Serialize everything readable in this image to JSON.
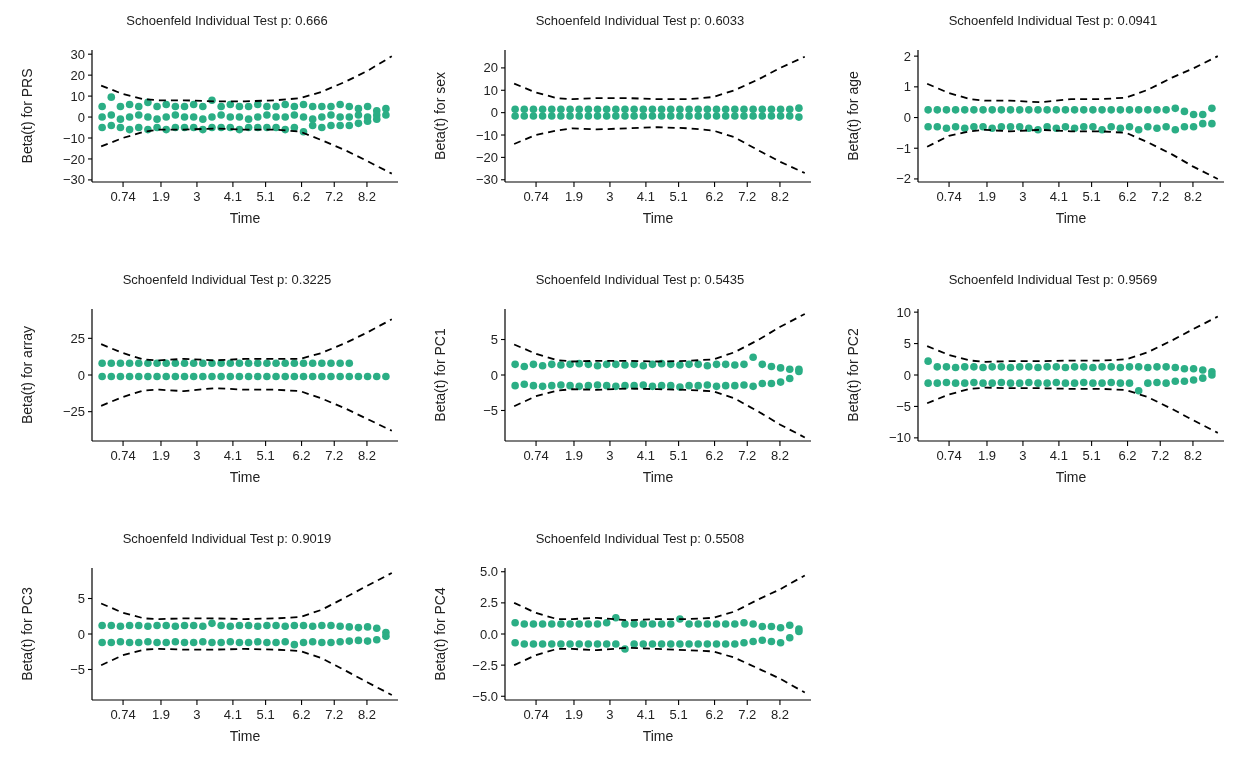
{
  "chart_data": [
    {
      "type": "scatter",
      "title": "Schoenfeld Individual Test p: 0.666",
      "xlabel": "Time",
      "ylabel": "Beta(t) for PRS",
      "grid": false,
      "xlim": [
        -0.21,
        9.15
      ],
      "xticks": [
        0.74,
        1.9,
        3,
        4.1,
        5.1,
        6.2,
        7.2,
        8.2
      ],
      "ylim": [
        -31,
        32
      ],
      "yticks": [
        {
          "value": -30,
          "label": "−30"
        },
        {
          "value": -20,
          "label": "−20"
        },
        {
          "value": -10,
          "label": "−10"
        },
        0,
        10,
        20,
        30
      ],
      "series": [
        {
          "color": "#2bae85",
          "x": [
            0.1,
            0.38,
            0.66,
            0.94,
            1.22,
            1.5,
            1.78,
            2.06,
            2.34,
            2.62,
            2.9,
            3.18,
            3.46,
            3.74,
            4.02,
            4.3,
            4.58,
            4.86,
            5.14,
            5.42,
            5.7,
            5.98,
            6.26,
            6.54,
            6.82,
            7.1,
            7.38,
            7.66,
            7.94,
            8.22,
            8.5,
            8.78,
            0.1,
            0.38,
            0.66,
            0.94,
            1.22,
            1.5,
            1.78,
            2.06,
            2.34,
            2.62,
            2.9,
            3.18,
            3.46,
            3.74,
            4.02,
            4.3,
            4.58,
            4.86,
            5.14,
            5.42,
            5.7,
            5.98,
            6.26,
            6.54,
            6.82,
            7.1,
            7.38,
            7.66,
            7.94,
            8.22,
            8.5,
            8.78,
            0.1,
            0.38,
            0.66,
            0.94,
            1.22,
            1.5,
            1.78,
            2.06,
            2.34,
            2.62,
            2.9,
            3.18,
            3.46,
            3.74,
            4.02,
            4.3,
            4.58,
            4.86,
            5.14,
            5.42,
            5.7,
            5.98,
            6.26,
            6.54,
            6.82,
            7.1,
            7.38,
            7.66,
            7.94,
            8.22,
            8.5
          ],
          "marker": "circle",
          "values": [
            5,
            9.5,
            5,
            6,
            5,
            7,
            5,
            6,
            5,
            5,
            6,
            5,
            8,
            5,
            6,
            5,
            5,
            6,
            5,
            5,
            6,
            5,
            6,
            5,
            5,
            5,
            6,
            5,
            4,
            5,
            3,
            4,
            0,
            1,
            -1,
            0,
            1,
            0,
            -1,
            0,
            1,
            0,
            0,
            -1,
            0,
            1,
            0,
            0,
            -1,
            0,
            1,
            0,
            0,
            1,
            0,
            -1,
            0,
            1,
            0,
            0,
            1,
            0,
            1,
            1,
            -5,
            -4,
            -5,
            -6,
            -5,
            -6,
            -5,
            -6,
            -5,
            -5,
            -5,
            -6,
            -5,
            -5,
            -5,
            -6,
            -5,
            -5,
            -5,
            -5,
            -6,
            -5,
            -7,
            -4,
            -5,
            -4,
            -4,
            -4,
            -3,
            -2,
            -1
          ]
        },
        {
          "type": "line",
          "color": "#000000",
          "line_style": "dashed",
          "x": [
            0.07,
            0.73,
            1.38,
            1.85,
            2.6,
            3.53,
            4.47,
            5.41,
            6.16,
            6.81,
            7.56,
            8.21,
            8.96
          ],
          "values": [
            15,
            11,
            8.5,
            8,
            8,
            7.5,
            7.5,
            8,
            9,
            12,
            17,
            22,
            29
          ]
        },
        {
          "type": "line",
          "color": "#000000",
          "line_style": "dashed",
          "x": [
            0.07,
            0.73,
            1.38,
            1.85,
            2.6,
            3.53,
            4.47,
            5.41,
            6.16,
            6.81,
            7.56,
            8.21,
            8.96
          ],
          "values": [
            -14,
            -10,
            -7,
            -6,
            -6,
            -5.5,
            -6,
            -6,
            -7,
            -11,
            -16,
            -21,
            -27
          ]
        }
      ]
    },
    {
      "type": "scatter",
      "title": "Schoenfeld Individual Test p: 0.6033",
      "xlabel": "Time",
      "ylabel": "Beta(t) for sex",
      "grid": false,
      "xlim": [
        -0.21,
        9.15
      ],
      "xticks": [
        0.74,
        1.9,
        3,
        4.1,
        5.1,
        6.2,
        7.2,
        8.2
      ],
      "ylim": [
        -31,
        28
      ],
      "yticks": [
        {
          "value": -30,
          "label": "−30"
        },
        {
          "value": -20,
          "label": "−20"
        },
        {
          "value": -10,
          "label": "−10"
        },
        0,
        10,
        20
      ],
      "series": [
        {
          "color": "#2bae85",
          "x": [
            0.1,
            0.38,
            0.66,
            0.94,
            1.22,
            1.5,
            1.78,
            2.06,
            2.34,
            2.62,
            2.9,
            3.18,
            3.46,
            3.74,
            4.02,
            4.3,
            4.58,
            4.86,
            5.14,
            5.42,
            5.7,
            5.98,
            6.26,
            6.54,
            6.82,
            7.1,
            7.38,
            7.66,
            7.94,
            8.22,
            8.5,
            8.78,
            0.1,
            0.38,
            0.66,
            0.94,
            1.22,
            1.5,
            1.78,
            2.06,
            2.34,
            2.62,
            2.9,
            3.18,
            3.46,
            3.74,
            4.02,
            4.3,
            4.58,
            4.86,
            5.14,
            5.42,
            5.7,
            5.98,
            6.26,
            6.54,
            6.82,
            7.1,
            7.38,
            7.66,
            7.94,
            8.22,
            8.5,
            8.78
          ],
          "marker": "circle",
          "values": [
            1.5,
            1.5,
            1.5,
            1.5,
            1.5,
            1.5,
            1.5,
            1.5,
            1.5,
            1.5,
            1.5,
            1.5,
            1.5,
            1.5,
            1.5,
            1.5,
            1.5,
            1.5,
            1.5,
            1.5,
            1.5,
            1.5,
            1.5,
            1.5,
            1.5,
            1.5,
            1.5,
            1.5,
            1.5,
            1.5,
            1.5,
            2,
            -1.5,
            -1.5,
            -1.5,
            -1.5,
            -1.5,
            -1.5,
            -1.5,
            -1.5,
            -1.5,
            -1.5,
            -1.5,
            -1.5,
            -1.5,
            -1.5,
            -1.5,
            -1.5,
            -1.5,
            -1.5,
            -1.5,
            -1.5,
            -1.5,
            -1.5,
            -1.5,
            -1.5,
            -1.5,
            -1.5,
            -1.5,
            -1.5,
            -1.5,
            -1.5,
            -1.5,
            -2
          ]
        },
        {
          "type": "line",
          "color": "#000000",
          "line_style": "dashed",
          "x": [
            0.07,
            0.73,
            1.38,
            1.85,
            2.6,
            3.53,
            4.47,
            5.41,
            6.16,
            6.81,
            7.56,
            8.21,
            8.96
          ],
          "values": [
            13,
            9,
            6.5,
            6,
            6.5,
            6.5,
            6,
            6,
            7,
            10,
            15,
            20,
            25
          ]
        },
        {
          "type": "line",
          "color": "#000000",
          "line_style": "dashed",
          "x": [
            0.07,
            0.73,
            1.38,
            1.85,
            2.6,
            3.53,
            4.47,
            5.41,
            6.16,
            6.81,
            7.56,
            8.21,
            8.96
          ],
          "values": [
            -14,
            -10,
            -8,
            -7,
            -7.5,
            -7,
            -6.5,
            -7,
            -8,
            -11,
            -17,
            -22,
            -27
          ]
        }
      ]
    },
    {
      "type": "scatter",
      "title": "Schoenfeld Individual Test p: 0.0941",
      "xlabel": "Time",
      "ylabel": "Beta(t) for age",
      "grid": false,
      "xlim": [
        -0.21,
        9.15
      ],
      "xticks": [
        0.74,
        1.9,
        3,
        4.1,
        5.1,
        6.2,
        7.2,
        8.2
      ],
      "ylim": [
        -2.1,
        2.2
      ],
      "yticks": [
        {
          "value": -2,
          "label": "−2"
        },
        {
          "value": -1,
          "label": "−1"
        },
        0,
        1,
        2
      ],
      "series": [
        {
          "color": "#2bae85",
          "x": [
            0.1,
            0.38,
            0.66,
            0.94,
            1.22,
            1.5,
            1.78,
            2.06,
            2.34,
            2.62,
            2.9,
            3.18,
            3.46,
            3.74,
            4.02,
            4.3,
            4.58,
            4.86,
            5.14,
            5.42,
            5.7,
            5.98,
            6.26,
            6.54,
            6.82,
            7.1,
            7.38,
            7.66,
            7.94,
            8.22,
            8.5,
            8.78,
            0.1,
            0.38,
            0.66,
            0.94,
            1.22,
            1.5,
            1.78,
            2.06,
            2.34,
            2.62,
            2.9,
            3.18,
            3.46,
            3.74,
            4.02,
            4.3,
            4.58,
            4.86,
            5.14,
            5.42,
            5.7,
            5.98,
            6.26,
            6.54,
            6.82,
            7.1,
            7.38,
            7.66,
            7.94,
            8.22,
            8.5,
            8.78
          ],
          "marker": "circle",
          "values": [
            0.25,
            0.25,
            0.25,
            0.25,
            0.25,
            0.25,
            0.25,
            0.25,
            0.25,
            0.25,
            0.25,
            0.25,
            0.25,
            0.25,
            0.25,
            0.25,
            0.25,
            0.25,
            0.25,
            0.25,
            0.25,
            0.25,
            0.25,
            0.25,
            0.25,
            0.25,
            0.25,
            0.3,
            0.2,
            0.1,
            0.1,
            0.3,
            -0.3,
            -0.3,
            -0.35,
            -0.3,
            -0.35,
            -0.3,
            -0.3,
            -0.35,
            -0.3,
            -0.3,
            -0.3,
            -0.35,
            -0.4,
            -0.3,
            -0.35,
            -0.3,
            -0.35,
            -0.3,
            -0.3,
            -0.4,
            -0.3,
            -0.35,
            -0.3,
            -0.4,
            -0.3,
            -0.35,
            -0.3,
            -0.4,
            -0.3,
            -0.3,
            -0.2,
            -0.2
          ]
        },
        {
          "type": "line",
          "color": "#000000",
          "line_style": "dashed",
          "x": [
            0.07,
            0.73,
            1.38,
            1.85,
            2.6,
            3.53,
            4.47,
            5.41,
            6.16,
            6.81,
            7.56,
            8.21,
            8.96
          ],
          "values": [
            1.1,
            0.8,
            0.6,
            0.55,
            0.55,
            0.5,
            0.6,
            0.6,
            0.65,
            0.9,
            1.3,
            1.6,
            2.0
          ]
        },
        {
          "type": "line",
          "color": "#000000",
          "line_style": "dashed",
          "x": [
            0.07,
            0.73,
            1.38,
            1.85,
            2.6,
            3.53,
            4.47,
            5.41,
            6.16,
            6.81,
            7.56,
            8.21,
            8.96
          ],
          "values": [
            -0.95,
            -0.6,
            -0.45,
            -0.4,
            -0.45,
            -0.4,
            -0.45,
            -0.45,
            -0.5,
            -0.8,
            -1.2,
            -1.6,
            -2.0
          ]
        }
      ]
    },
    {
      "type": "scatter",
      "title": "Schoenfeld Individual Test p: 0.3225",
      "xlabel": "Time",
      "ylabel": "Beta(t) for array",
      "grid": false,
      "xlim": [
        -0.21,
        9.15
      ],
      "xticks": [
        0.74,
        1.9,
        3,
        4.1,
        5.1,
        6.2,
        7.2,
        8.2
      ],
      "ylim": [
        -45,
        45
      ],
      "yticks": [
        {
          "value": -25,
          "label": "−25"
        },
        0,
        25
      ],
      "series": [
        {
          "color": "#2bae85",
          "x": [
            0.1,
            0.38,
            0.66,
            0.94,
            1.22,
            1.5,
            1.78,
            2.06,
            2.34,
            2.62,
            2.9,
            3.18,
            3.46,
            3.74,
            4.02,
            4.3,
            4.58,
            4.86,
            5.14,
            5.42,
            5.7,
            5.98,
            6.26,
            6.54,
            6.82,
            7.1,
            7.38,
            7.66,
            0.1,
            0.38,
            0.66,
            0.94,
            1.22,
            1.5,
            1.78,
            2.06,
            2.34,
            2.62,
            2.9,
            3.18,
            3.46,
            3.74,
            4.02,
            4.3,
            4.58,
            4.86,
            5.14,
            5.42,
            5.7,
            5.98,
            6.26,
            6.54,
            6.82,
            7.1,
            7.38,
            7.66,
            7.94,
            8.22,
            8.5,
            8.78
          ],
          "marker": "circle",
          "values": [
            8,
            8,
            8,
            8,
            8,
            8,
            8,
            8,
            8,
            8,
            8,
            8,
            8,
            8,
            8,
            8,
            8,
            8,
            8,
            8,
            8,
            8,
            8,
            8,
            8,
            8,
            8,
            8,
            -1,
            -1,
            -1,
            -1,
            -1,
            -1,
            -1,
            -1,
            -1,
            -1,
            -1,
            -1,
            -1,
            -1,
            -1,
            -1,
            -1,
            -1,
            -1,
            -1,
            -1,
            -1,
            -1,
            -1,
            -1,
            -1,
            -1,
            -1,
            -1,
            -1,
            -1,
            -1
          ]
        },
        {
          "type": "line",
          "color": "#000000",
          "line_style": "dashed",
          "x": [
            0.07,
            0.73,
            1.38,
            1.85,
            2.6,
            3.53,
            4.47,
            5.41,
            6.16,
            6.81,
            7.56,
            8.21,
            8.96
          ],
          "values": [
            21,
            15,
            10.5,
            10,
            11,
            10,
            11,
            11,
            11,
            15,
            22,
            29,
            38
          ]
        },
        {
          "type": "line",
          "color": "#000000",
          "line_style": "dashed",
          "x": [
            0.07,
            0.73,
            1.38,
            1.85,
            2.6,
            3.53,
            4.47,
            5.41,
            6.16,
            6.81,
            7.56,
            8.21,
            8.96
          ],
          "values": [
            -21,
            -15,
            -10.5,
            -10,
            -11,
            -9,
            -10,
            -10,
            -11,
            -16,
            -23,
            -30,
            -38
          ]
        }
      ]
    },
    {
      "type": "scatter",
      "title": "Schoenfeld Individual Test p: 0.5435",
      "xlabel": "Time",
      "ylabel": "Beta(t) for PC1",
      "grid": false,
      "xlim": [
        -0.21,
        9.15
      ],
      "xticks": [
        0.74,
        1.9,
        3,
        4.1,
        5.1,
        6.2,
        7.2,
        8.2
      ],
      "ylim": [
        -9.3,
        9.3
      ],
      "yticks": [
        {
          "value": -5,
          "label": "−5"
        },
        0,
        5
      ],
      "series": [
        {
          "color": "#2bae85",
          "x": [
            0.1,
            0.38,
            0.66,
            0.94,
            1.22,
            1.5,
            1.78,
            2.06,
            2.34,
            2.62,
            2.9,
            3.18,
            3.46,
            3.74,
            4.02,
            4.3,
            4.58,
            4.86,
            5.14,
            5.42,
            5.7,
            5.98,
            6.26,
            6.54,
            6.82,
            7.1,
            7.38,
            7.66,
            7.94,
            8.22,
            8.5,
            8.78,
            0.1,
            0.38,
            0.66,
            0.94,
            1.22,
            1.5,
            1.78,
            2.06,
            2.34,
            2.62,
            2.9,
            3.18,
            3.46,
            3.74,
            4.02,
            4.3,
            4.58,
            4.86,
            5.14,
            5.42,
            5.7,
            5.98,
            6.26,
            6.54,
            6.82,
            7.1,
            7.38,
            7.66,
            7.94,
            8.22,
            8.5,
            8.78
          ],
          "marker": "circle",
          "values": [
            1.5,
            1.2,
            1.5,
            1.3,
            1.5,
            1.4,
            1.5,
            1.6,
            1.5,
            1.3,
            1.5,
            1.5,
            1.4,
            1.5,
            1.3,
            1.5,
            1.6,
            1.5,
            1.4,
            1.5,
            1.5,
            1.3,
            1.5,
            1.5,
            1.4,
            1.5,
            2.5,
            1.5,
            1.2,
            1,
            0.8,
            0.8,
            -1.5,
            -1.3,
            -1.5,
            -1.6,
            -1.5,
            -1.4,
            -1.5,
            -1.6,
            -1.5,
            -1.4,
            -1.5,
            -1.6,
            -1.5,
            -1.5,
            -1.4,
            -1.6,
            -1.5,
            -1.5,
            -1.7,
            -1.5,
            -1.5,
            -1.4,
            -1.6,
            -1.5,
            -1.5,
            -1.4,
            -1.6,
            -1.2,
            -1.2,
            -1,
            -0.5,
            0.5
          ]
        },
        {
          "type": "line",
          "color": "#000000",
          "line_style": "dashed",
          "x": [
            0.07,
            0.73,
            1.38,
            1.85,
            2.6,
            3.53,
            4.47,
            5.41,
            6.16,
            6.81,
            7.56,
            8.21,
            8.96
          ],
          "values": [
            4.3,
            3,
            2.1,
            1.9,
            2,
            2,
            1.9,
            2,
            2.2,
            3.2,
            5,
            6.8,
            8.6
          ]
        },
        {
          "type": "line",
          "color": "#000000",
          "line_style": "dashed",
          "x": [
            0.07,
            0.73,
            1.38,
            1.85,
            2.6,
            3.53,
            4.47,
            5.41,
            6.16,
            6.81,
            7.56,
            8.21,
            8.96
          ],
          "values": [
            -4.4,
            -3,
            -2.2,
            -2,
            -2.1,
            -1.9,
            -2,
            -2.1,
            -2.3,
            -3.3,
            -5.2,
            -7,
            -8.8
          ]
        }
      ]
    },
    {
      "type": "scatter",
      "title": "Schoenfeld Individual Test p: 0.9569",
      "xlabel": "Time",
      "ylabel": "Beta(t) for PC2",
      "grid": false,
      "xlim": [
        -0.21,
        9.15
      ],
      "xticks": [
        0.74,
        1.9,
        3,
        4.1,
        5.1,
        6.2,
        7.2,
        8.2
      ],
      "ylim": [
        -10.5,
        10.5
      ],
      "yticks": [
        {
          "value": -10,
          "label": "−10"
        },
        {
          "value": -5,
          "label": "−5"
        },
        0,
        5,
        10
      ],
      "series": [
        {
          "color": "#2bae85",
          "x": [
            0.1,
            0.38,
            0.66,
            0.94,
            1.22,
            1.5,
            1.78,
            2.06,
            2.34,
            2.62,
            2.9,
            3.18,
            3.46,
            3.74,
            4.02,
            4.3,
            4.58,
            4.86,
            5.14,
            5.42,
            5.7,
            5.98,
            6.26,
            6.54,
            6.82,
            7.1,
            7.38,
            7.66,
            7.94,
            8.22,
            8.5,
            8.78,
            0.1,
            0.38,
            0.66,
            0.94,
            1.22,
            1.5,
            1.78,
            2.06,
            2.34,
            2.62,
            2.9,
            3.18,
            3.46,
            3.74,
            4.02,
            4.3,
            4.58,
            4.86,
            5.14,
            5.42,
            5.7,
            5.98,
            6.26,
            6.54,
            6.82,
            7.1,
            7.38,
            7.66,
            7.94,
            8.22,
            8.5,
            8.78
          ],
          "marker": "circle",
          "values": [
            2.2,
            1.3,
            1.3,
            1.2,
            1.3,
            1.3,
            1.2,
            1.3,
            1.3,
            1.2,
            1.3,
            1.3,
            1.2,
            1.3,
            1.3,
            1.2,
            1.3,
            1.3,
            1.2,
            1.3,
            1.3,
            1.2,
            1.3,
            1.3,
            1.2,
            1.3,
            1.3,
            1.2,
            1,
            1,
            0.8,
            0.5,
            -1.3,
            -1.3,
            -1.2,
            -1.3,
            -1.3,
            -1.2,
            -1.3,
            -1.3,
            -1.2,
            -1.3,
            -1.3,
            -1.2,
            -1.3,
            -1.3,
            -1.2,
            -1.3,
            -1.3,
            -1.2,
            -1.3,
            -1.3,
            -1.2,
            -1.3,
            -1.3,
            -2.5,
            -1.3,
            -1.2,
            -1.3,
            -1,
            -1,
            -0.8,
            -0.5,
            0
          ]
        },
        {
          "type": "line",
          "color": "#000000",
          "line_style": "dashed",
          "x": [
            0.07,
            0.73,
            1.38,
            1.85,
            2.6,
            3.53,
            4.47,
            5.41,
            6.16,
            6.81,
            7.56,
            8.21,
            8.96
          ],
          "values": [
            4.6,
            3.2,
            2.3,
            2.1,
            2.2,
            2.2,
            2.3,
            2.3,
            2.5,
            3.6,
            5.5,
            7.3,
            9.3
          ]
        },
        {
          "type": "line",
          "color": "#000000",
          "line_style": "dashed",
          "x": [
            0.07,
            0.73,
            1.38,
            1.85,
            2.6,
            3.53,
            4.47,
            5.41,
            6.16,
            6.81,
            7.56,
            8.21,
            8.96
          ],
          "values": [
            -4.5,
            -3.1,
            -2.2,
            -2,
            -2.1,
            -2.1,
            -2.2,
            -2.2,
            -2.4,
            -3.5,
            -5.4,
            -7.2,
            -9.2
          ]
        }
      ]
    },
    {
      "type": "scatter",
      "title": "Schoenfeld Individual Test p: 0.9019",
      "xlabel": "Time",
      "ylabel": "Beta(t) for PC3",
      "grid": false,
      "xlim": [
        -0.21,
        9.15
      ],
      "xticks": [
        0.74,
        1.9,
        3,
        4.1,
        5.1,
        6.2,
        7.2,
        8.2
      ],
      "ylim": [
        -9.3,
        9.3
      ],
      "yticks": [
        {
          "value": -5,
          "label": "−5"
        },
        0,
        5
      ],
      "series": [
        {
          "color": "#2bae85",
          "x": [
            0.1,
            0.38,
            0.66,
            0.94,
            1.22,
            1.5,
            1.78,
            2.06,
            2.34,
            2.62,
            2.9,
            3.18,
            3.46,
            3.74,
            4.02,
            4.3,
            4.58,
            4.86,
            5.14,
            5.42,
            5.7,
            5.98,
            6.26,
            6.54,
            6.82,
            7.1,
            7.38,
            7.66,
            7.94,
            8.22,
            8.5,
            8.78,
            0.1,
            0.38,
            0.66,
            0.94,
            1.22,
            1.5,
            1.78,
            2.06,
            2.34,
            2.62,
            2.9,
            3.18,
            3.46,
            3.74,
            4.02,
            4.3,
            4.58,
            4.86,
            5.14,
            5.42,
            5.7,
            5.98,
            6.26,
            6.54,
            6.82,
            7.1,
            7.38,
            7.66,
            7.94,
            8.22,
            8.5,
            8.78
          ],
          "marker": "circle",
          "values": [
            1.2,
            1.2,
            1.1,
            1.2,
            1.2,
            1.1,
            1.2,
            1.2,
            1.1,
            1.2,
            1.2,
            1.1,
            1.5,
            1.2,
            1.1,
            1.2,
            1.2,
            1.1,
            1.2,
            1.2,
            1.1,
            1.2,
            1.2,
            1.1,
            1.2,
            1.2,
            1.1,
            1,
            0.9,
            1,
            0.8,
            0.2,
            -1.2,
            -1.2,
            -1.1,
            -1.2,
            -1.2,
            -1.1,
            -1.2,
            -1.2,
            -1.1,
            -1.2,
            -1.2,
            -1.1,
            -1.2,
            -1.2,
            -1.1,
            -1.2,
            -1.2,
            -1.1,
            -1.2,
            -1.2,
            -1.1,
            -1.5,
            -1.2,
            -1.1,
            -1.2,
            -1.2,
            -1.1,
            -1,
            -0.9,
            -1,
            -0.8,
            -0.3
          ]
        },
        {
          "type": "line",
          "color": "#000000",
          "line_style": "dashed",
          "x": [
            0.07,
            0.73,
            1.38,
            1.85,
            2.6,
            3.53,
            4.47,
            5.41,
            6.16,
            6.81,
            7.56,
            8.21,
            8.96
          ],
          "values": [
            4.3,
            3,
            2.2,
            2.1,
            2.2,
            2.2,
            2.1,
            2.2,
            2.4,
            3.4,
            5.2,
            6.8,
            8.6
          ]
        },
        {
          "type": "line",
          "color": "#000000",
          "line_style": "dashed",
          "x": [
            0.07,
            0.73,
            1.38,
            1.85,
            2.6,
            3.53,
            4.47,
            5.41,
            6.16,
            6.81,
            7.56,
            8.21,
            8.96
          ],
          "values": [
            -4.4,
            -3,
            -2.2,
            -2.1,
            -2.2,
            -2.2,
            -2.1,
            -2.2,
            -2.4,
            -3.4,
            -5.2,
            -6.8,
            -8.6
          ]
        }
      ]
    },
    {
      "type": "scatter",
      "title": "Schoenfeld Individual Test p: 0.5508",
      "xlabel": "Time",
      "ylabel": "Beta(t) for PC4",
      "grid": false,
      "xlim": [
        -0.21,
        9.15
      ],
      "xticks": [
        0.74,
        1.9,
        3,
        4.1,
        5.1,
        6.2,
        7.2,
        8.2
      ],
      "ylim": [
        -5.3,
        5.3
      ],
      "yticks": [
        {
          "value": -5,
          "label": "−5.0"
        },
        {
          "value": -2.5,
          "label": "−2.5"
        },
        {
          "value": 0,
          "label": "0.0"
        },
        2.5,
        {
          "value": 5,
          "label": "5.0"
        }
      ],
      "series": [
        {
          "color": "#2bae85",
          "x": [
            0.1,
            0.38,
            0.66,
            0.94,
            1.22,
            1.5,
            1.78,
            2.06,
            2.34,
            2.62,
            2.9,
            3.18,
            3.46,
            3.74,
            4.02,
            4.3,
            4.58,
            4.86,
            5.14,
            5.42,
            5.7,
            5.98,
            6.26,
            6.54,
            6.82,
            7.1,
            7.38,
            7.66,
            7.94,
            8.22,
            8.5,
            8.78,
            0.1,
            0.38,
            0.66,
            0.94,
            1.22,
            1.5,
            1.78,
            2.06,
            2.34,
            2.62,
            2.9,
            3.18,
            3.46,
            3.74,
            4.02,
            4.3,
            4.58,
            4.86,
            5.14,
            5.42,
            5.7,
            5.98,
            6.26,
            6.54,
            6.82,
            7.1,
            7.38,
            7.66,
            7.94,
            8.22,
            8.5,
            8.78
          ],
          "marker": "circle",
          "values": [
            0.9,
            0.8,
            0.8,
            0.8,
            0.8,
            0.8,
            0.8,
            0.8,
            0.8,
            0.8,
            0.9,
            1.3,
            0.8,
            0.8,
            0.8,
            0.8,
            0.8,
            0.8,
            1.2,
            0.8,
            0.8,
            0.8,
            0.8,
            0.8,
            0.8,
            0.9,
            0.8,
            0.6,
            0.6,
            0.5,
            0.7,
            0.4,
            -0.7,
            -0.8,
            -0.8,
            -0.8,
            -0.8,
            -0.8,
            -0.8,
            -0.8,
            -0.8,
            -0.8,
            -0.8,
            -0.8,
            -1.2,
            -0.8,
            -0.8,
            -0.8,
            -0.8,
            -0.8,
            -0.8,
            -0.8,
            -0.8,
            -0.8,
            -0.8,
            -0.8,
            -0.8,
            -0.7,
            -0.6,
            -0.5,
            -0.6,
            -0.7,
            -0.3,
            0.2
          ]
        },
        {
          "type": "line",
          "color": "#000000",
          "line_style": "dashed",
          "x": [
            0.07,
            0.73,
            1.38,
            1.85,
            2.6,
            3.53,
            4.47,
            5.41,
            6.16,
            6.81,
            7.56,
            8.21,
            8.96
          ],
          "values": [
            2.5,
            1.7,
            1.2,
            1.2,
            1.3,
            1.1,
            1.2,
            1.2,
            1.3,
            1.8,
            2.8,
            3.6,
            4.7
          ]
        },
        {
          "type": "line",
          "color": "#000000",
          "line_style": "dashed",
          "x": [
            0.07,
            0.73,
            1.38,
            1.85,
            2.6,
            3.53,
            4.47,
            5.41,
            6.16,
            6.81,
            7.56,
            8.21,
            8.96
          ],
          "values": [
            -2.5,
            -1.7,
            -1.2,
            -1.2,
            -1.3,
            -1.1,
            -1.2,
            -1.3,
            -1.4,
            -1.9,
            -2.8,
            -3.6,
            -4.7
          ]
        }
      ]
    }
  ]
}
